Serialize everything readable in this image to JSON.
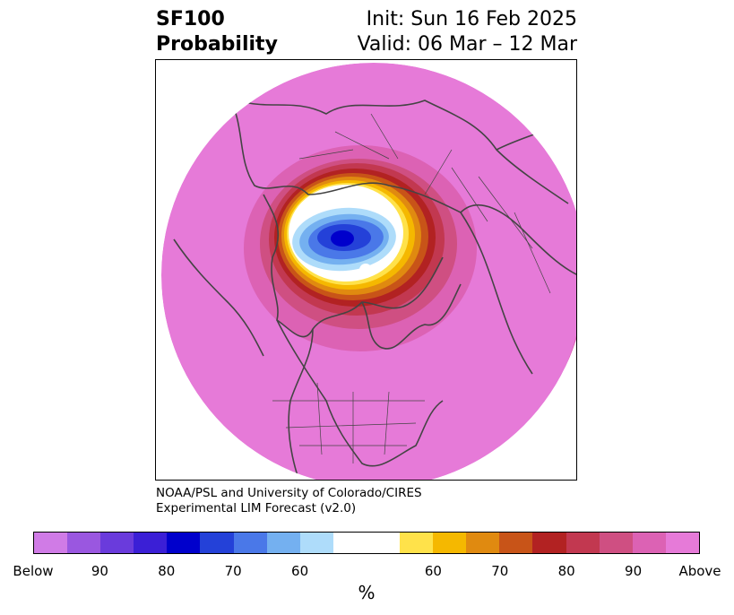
{
  "header": {
    "variable": "SF100",
    "product": "Probability",
    "init": "Init: Sun 16 Feb 2025",
    "valid": "Valid: 06 Mar – 12 Mar"
  },
  "credit": {
    "line1": "NOAA/PSL and University of Colorado/CIRES",
    "line2": "Experimental LIM Forecast (v2.0)"
  },
  "colorbar": {
    "unit": "%",
    "colors": [
      "#d07be6",
      "#9a57e0",
      "#6a3bdc",
      "#3b1fd6",
      "#0000cc",
      "#2441d8",
      "#4a78e8",
      "#74b0f0",
      "#aedcfa",
      "#ffffff",
      "#ffe24a",
      "#f5b800",
      "#e08a10",
      "#c85418",
      "#b22222",
      "#c23850",
      "#cf4f82",
      "#dc62b4",
      "#e67ad8"
    ],
    "ticks": [
      "Below",
      "90",
      "80",
      "70",
      "60",
      "60",
      "70",
      "80",
      "90",
      "Above"
    ]
  },
  "map": {
    "palette": {
      "above": "#e67ad8",
      "warm1": "#dc62b4",
      "warm2": "#cf4f82",
      "warm3": "#c23850",
      "warm4": "#b22222",
      "warm5": "#c85418",
      "warm6": "#e08a10",
      "warm7": "#f5b800",
      "warm8": "#ffe24a",
      "neutral": "#ffffff",
      "cold1": "#aedcfa",
      "cold2": "#74b0f0",
      "cold3": "#4a78e8",
      "cold4": "#2441d8",
      "cold5": "#0000cc",
      "coast": "#444444"
    }
  }
}
